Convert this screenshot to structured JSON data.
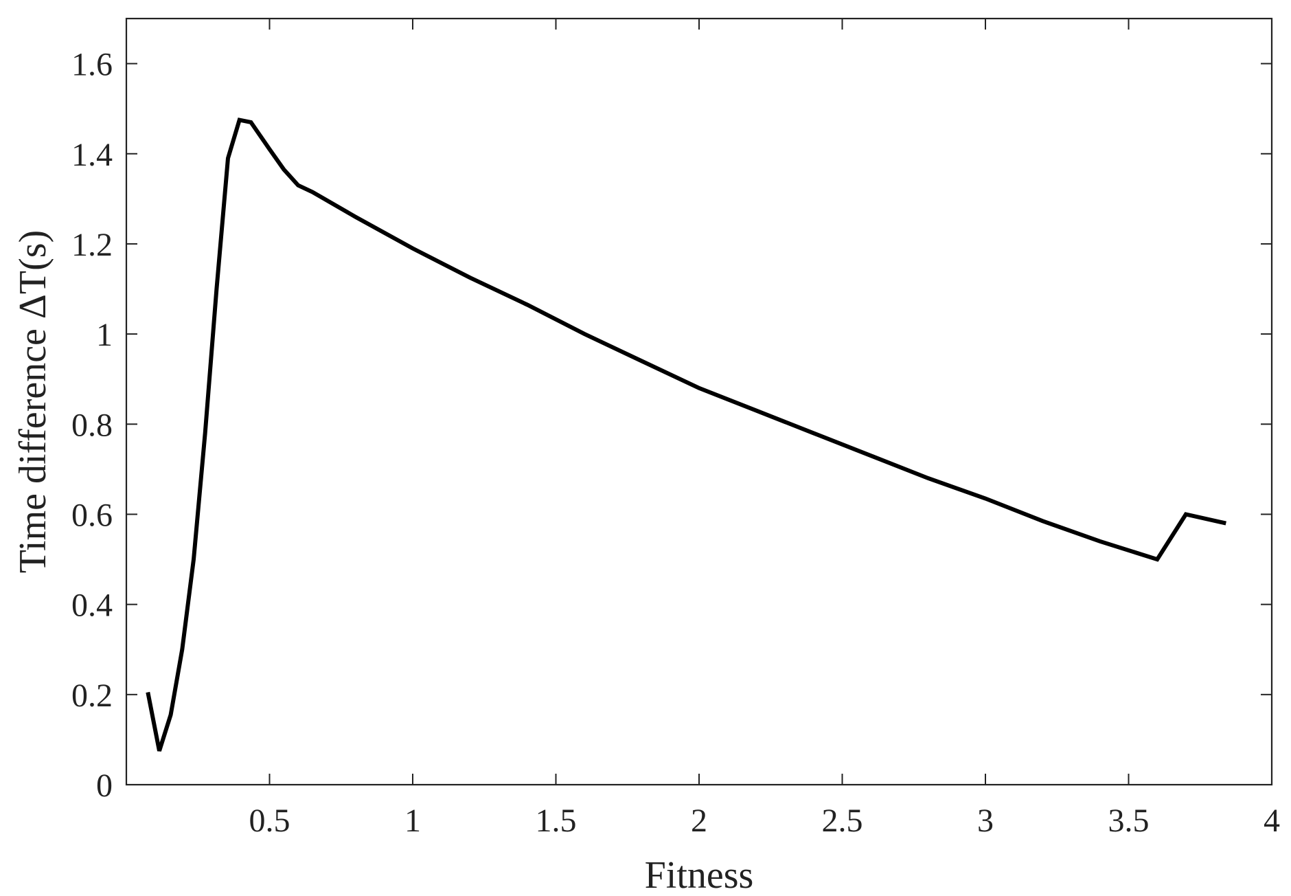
{
  "chart_data": {
    "type": "line",
    "title": "",
    "xlabel": "Fitness",
    "ylabel": "Time difference ΔT(s)",
    "xlim": [
      0,
      4
    ],
    "ylim": [
      0,
      1.7
    ],
    "xticks": [
      0.5,
      1,
      1.5,
      2,
      2.5,
      3,
      3.5,
      4
    ],
    "xtick_labels": [
      "0.5",
      "1",
      "1.5",
      "2",
      "2.5",
      "3",
      "3.5",
      "4"
    ],
    "yticks": [
      0,
      0.2,
      0.4,
      0.6,
      0.8,
      1.0,
      1.2,
      1.4,
      1.6
    ],
    "ytick_labels": [
      "0",
      "0.2",
      "0.4",
      "0.6",
      "0.8",
      "1",
      "1.2",
      "1.4",
      "1.6"
    ],
    "grid": false,
    "series": [
      {
        "color": "#000000",
        "x": [
          0.075,
          0.115,
          0.155,
          0.195,
          0.235,
          0.275,
          0.315,
          0.355,
          0.395,
          0.435,
          0.5,
          0.55,
          0.6,
          0.65,
          0.8,
          1.0,
          1.2,
          1.4,
          1.6,
          1.8,
          2.0,
          2.2,
          2.4,
          2.6,
          2.8,
          3.0,
          3.2,
          3.4,
          3.6,
          3.7,
          3.84
        ],
        "y": [
          0.205,
          0.075,
          0.155,
          0.3,
          0.5,
          0.78,
          1.1,
          1.39,
          1.475,
          1.47,
          1.41,
          1.365,
          1.33,
          1.315,
          1.26,
          1.19,
          1.125,
          1.065,
          1.0,
          0.94,
          0.88,
          0.83,
          0.78,
          0.73,
          0.68,
          0.635,
          0.585,
          0.54,
          0.5,
          0.6,
          0.58
        ]
      }
    ]
  }
}
